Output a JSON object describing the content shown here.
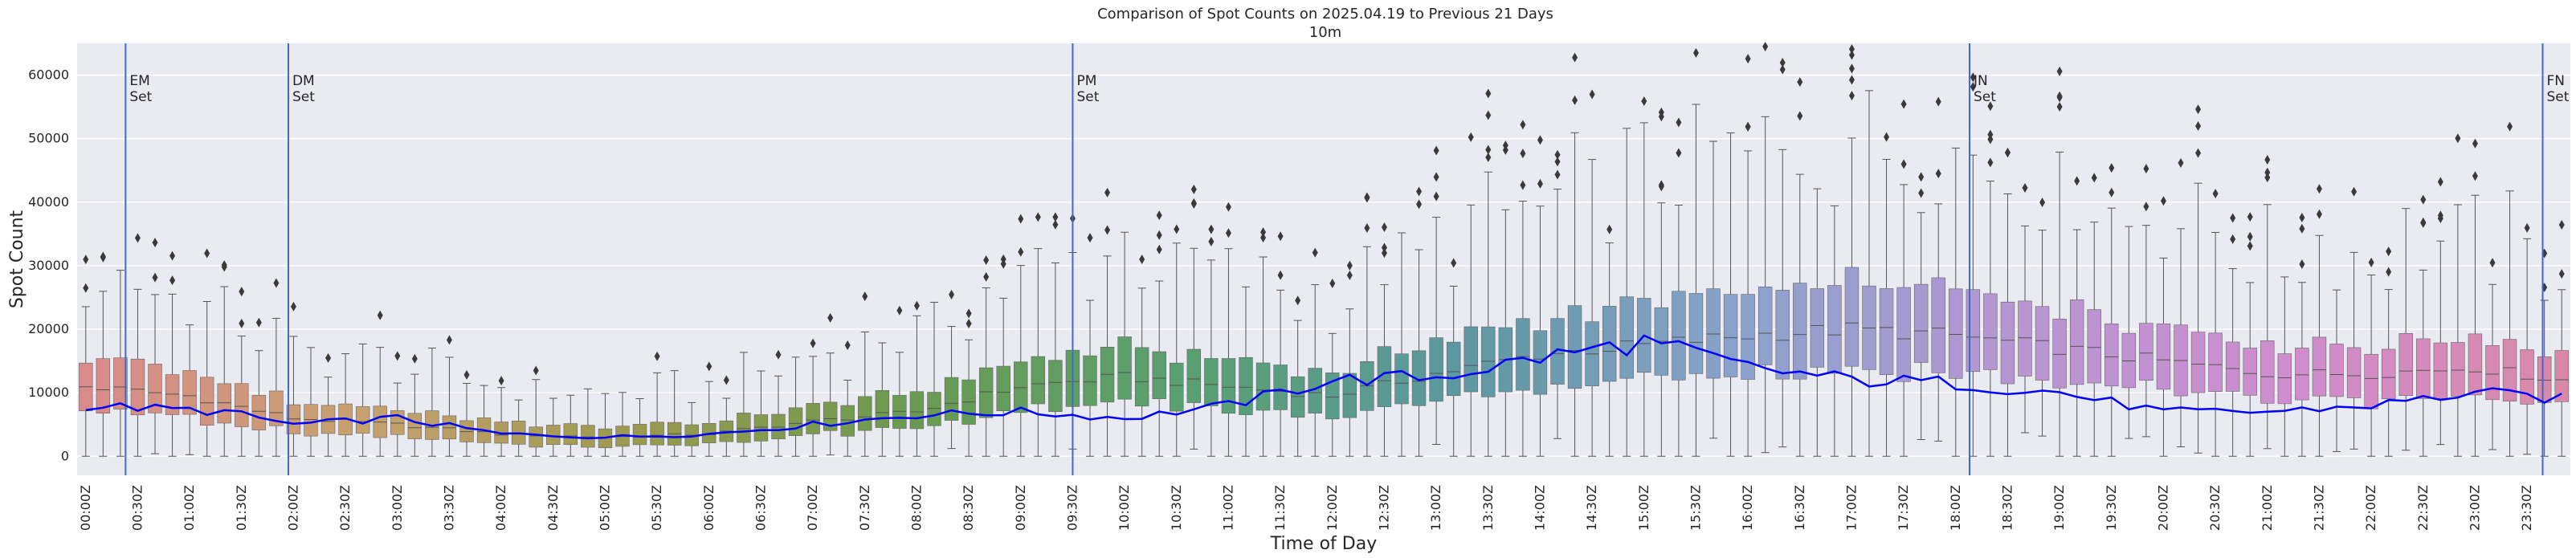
{
  "chart_data": {
    "type": "box",
    "title_line1": "Comparison of Spot Counts on 2025.04.19 to Previous 21 Days",
    "title_line2": "10m",
    "xlabel": "Time of Day",
    "ylabel": "Spot Count",
    "ylim": [
      -3000,
      65000
    ],
    "yticks": [
      "0",
      "10000",
      "20000",
      "30000",
      "40000",
      "50000",
      "60000"
    ],
    "xticks": [
      "00:00Z",
      "00:30Z",
      "01:00Z",
      "01:30Z",
      "02:00Z",
      "02:30Z",
      "03:00Z",
      "03:30Z",
      "04:00Z",
      "04:30Z",
      "05:00Z",
      "05:30Z",
      "06:00Z",
      "06:30Z",
      "07:00Z",
      "07:30Z",
      "08:00Z",
      "08:30Z",
      "09:00Z",
      "09:30Z",
      "10:00Z",
      "10:30Z",
      "11:00Z",
      "11:30Z",
      "12:00Z",
      "12:30Z",
      "13:00Z",
      "13:30Z",
      "14:00Z",
      "14:30Z",
      "15:00Z",
      "15:30Z",
      "16:00Z",
      "16:30Z",
      "17:00Z",
      "17:30Z",
      "18:00Z",
      "18:30Z",
      "19:00Z",
      "19:30Z",
      "20:00Z",
      "20:30Z",
      "21:00Z",
      "21:30Z",
      "22:00Z",
      "22:30Z",
      "23:00Z",
      "23:30Z"
    ],
    "num_slots": 144,
    "median_anchors": [
      [
        0,
        11000
      ],
      [
        6,
        9500
      ],
      [
        12,
        6000
      ],
      [
        18,
        5000
      ],
      [
        24,
        3500
      ],
      [
        30,
        3000
      ],
      [
        36,
        3500
      ],
      [
        42,
        5500
      ],
      [
        48,
        7000
      ],
      [
        54,
        11000
      ],
      [
        60,
        12500
      ],
      [
        66,
        11000
      ],
      [
        72,
        9500
      ],
      [
        78,
        13000
      ],
      [
        84,
        16000
      ],
      [
        90,
        17500
      ],
      [
        96,
        19000
      ],
      [
        102,
        20000
      ],
      [
        108,
        19000
      ],
      [
        114,
        17000
      ],
      [
        120,
        15000
      ],
      [
        126,
        13000
      ],
      [
        132,
        13000
      ],
      [
        138,
        14000
      ],
      [
        143,
        12000
      ]
    ],
    "today_anchors": [
      [
        0,
        8000
      ],
      [
        8,
        7000
      ],
      [
        12,
        5000
      ],
      [
        18,
        6000
      ],
      [
        24,
        3500
      ],
      [
        30,
        3000
      ],
      [
        36,
        3500
      ],
      [
        42,
        5000
      ],
      [
        48,
        6500
      ],
      [
        54,
        7000
      ],
      [
        60,
        6000
      ],
      [
        66,
        8000
      ],
      [
        72,
        12000
      ],
      [
        78,
        12500
      ],
      [
        84,
        15500
      ],
      [
        90,
        18000
      ],
      [
        96,
        14000
      ],
      [
        102,
        12000
      ],
      [
        108,
        11500
      ],
      [
        114,
        10000
      ],
      [
        120,
        7000
      ],
      [
        126,
        7000
      ],
      [
        132,
        8000
      ],
      [
        138,
        10000
      ],
      [
        143,
        9000
      ]
    ],
    "today_series_name": "2025.04.19",
    "annotations": [
      {
        "line1": "EM",
        "line2": "Set",
        "slot": 2.8
      },
      {
        "line1": "DM",
        "line2": "Set",
        "slot": 12.2
      },
      {
        "line1": "PM",
        "line2": "Set",
        "slot": 57.5
      },
      {
        "line1": "JN",
        "line2": "Set",
        "slot": 109.3
      },
      {
        "line1": "FN",
        "line2": "Set",
        "slot": 142.4
      }
    ],
    "colors": {
      "background": "#eaeaf2",
      "grid": "#ffffff",
      "today_line": "#0000ff",
      "vline": "#4169c8",
      "outlier": "#3a3a3a"
    },
    "palette_stops": [
      "#d98a8a",
      "#c7a16e",
      "#9a9a4e",
      "#6a9a50",
      "#58a070",
      "#5c98a0",
      "#8aa2cc",
      "#b696d2",
      "#cf8ccf",
      "#d989a8"
    ],
    "grid": true
  }
}
